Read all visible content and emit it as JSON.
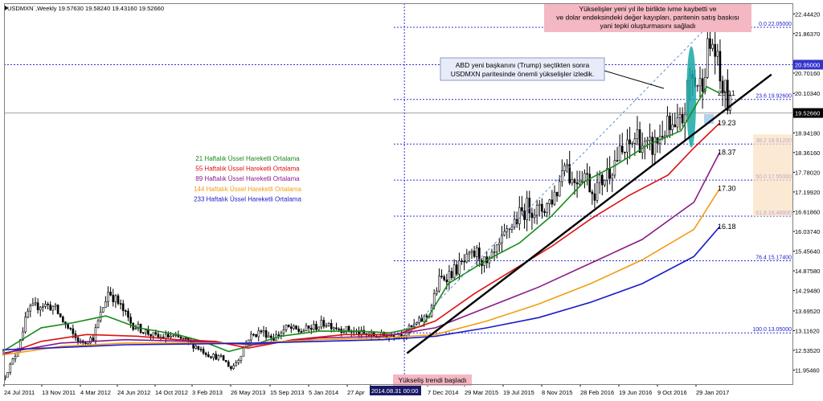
{
  "chart_data": {
    "type": "candlestick",
    "symbol_header": {
      "symbol": "USDMXN`,Weekly",
      "ohlc": [
        "19.57630",
        "19.58240",
        "19.43160",
        "19.52660"
      ]
    },
    "last_price": 19.5266,
    "ylim": [
      11.54,
      22.76
    ],
    "y_ticks": [
      {
        "v": 22.4442,
        "t": "22.44420"
      },
      {
        "v": 21.8637,
        "t": "21.86370"
      },
      {
        "v": 20.7016,
        "t": "20.70160"
      },
      {
        "v": 20.1034,
        "t": "20.10340"
      },
      {
        "v": 18.9418,
        "t": "18.94180"
      },
      {
        "v": 18.3616,
        "t": "18.36160"
      },
      {
        "v": 17.7802,
        "t": "17.78020"
      },
      {
        "v": 17.1992,
        "t": "17.19920"
      },
      {
        "v": 16.6186,
        "t": "16.61860"
      },
      {
        "v": 16.0374,
        "t": "16.03740"
      },
      {
        "v": 15.4564,
        "t": "15.45640"
      },
      {
        "v": 14.8758,
        "t": "14.87580"
      },
      {
        "v": 14.2948,
        "t": "14.29480"
      },
      {
        "v": 13.6952,
        "t": "13.69520"
      },
      {
        "v": 13.1162,
        "t": "13.11620"
      },
      {
        "v": 12.5352,
        "t": "12.53520"
      },
      {
        "v": 11.9546,
        "t": "11.95460"
      }
    ],
    "x_ticks": [
      "24 Jul 2011",
      "13 Nov 2011",
      "4 Mar 2012",
      "24 Jun 2012",
      "14 Oct 2012",
      "3 Feb 2013",
      "26 May 2013",
      "15 Sep 2013",
      "5 Jan 2014",
      "27 Apr",
      "2014.08.31 00:00",
      "7 Dec 2014",
      "29 Mar 2015",
      "19 Jul 2015",
      "8 Nov 2015",
      "28 Feb 2016",
      "19 Jun 2016",
      "9 Oct 2016",
      "29 Jan 2017"
    ],
    "x_cursor_label": "2014.08.31 00:00",
    "h_level_tag": {
      "v": 20.95,
      "t": "20.95000"
    },
    "fibonacci": [
      {
        "label": "0.0 22.05000",
        "v": 22.05
      },
      {
        "label": "23.6 19.92600",
        "v": 19.926
      },
      {
        "label": "38.2 18.61200",
        "v": 18.612
      },
      {
        "label": "50.0 17.55000",
        "v": 17.55
      },
      {
        "label": "61.8 16.48800",
        "v": 16.488
      },
      {
        "label": "76.4 15.17400",
        "v": 15.174
      },
      {
        "label": "100.0 13.05000",
        "v": 13.05
      }
    ],
    "series": [
      {
        "name": "21 Haftalık Üssel Hareketli Ortalama",
        "color": "#1a8a1a",
        "end_label": "20.11",
        "points": [
          [
            2011.55,
            12.5
          ],
          [
            2011.85,
            13.2
          ],
          [
            2012.1,
            13.35
          ],
          [
            2012.35,
            13.55
          ],
          [
            2012.6,
            13.2
          ],
          [
            2012.9,
            13.0
          ],
          [
            2013.1,
            12.8
          ],
          [
            2013.3,
            12.5
          ],
          [
            2013.45,
            12.65
          ],
          [
            2013.7,
            12.95
          ],
          [
            2014.0,
            13.1
          ],
          [
            2014.3,
            13.1
          ],
          [
            2014.55,
            13.05
          ],
          [
            2014.8,
            13.25
          ],
          [
            2015.0,
            14.5
          ],
          [
            2015.3,
            15.2
          ],
          [
            2015.55,
            15.7
          ],
          [
            2015.8,
            16.5
          ],
          [
            2016.05,
            17.5
          ],
          [
            2016.3,
            18.0
          ],
          [
            2016.55,
            18.6
          ],
          [
            2016.8,
            19.0
          ],
          [
            2017.0,
            20.3
          ],
          [
            2017.1,
            20.11
          ]
        ]
      },
      {
        "name": "55 Haftalık Üssel Hareketli Ortalama",
        "color": "#dd1111",
        "end_label": "19.23",
        "points": [
          [
            2011.55,
            12.4
          ],
          [
            2011.85,
            12.8
          ],
          [
            2012.2,
            13.0
          ],
          [
            2012.6,
            12.95
          ],
          [
            2012.9,
            12.85
          ],
          [
            2013.2,
            12.8
          ],
          [
            2013.45,
            12.6
          ],
          [
            2013.8,
            12.85
          ],
          [
            2014.2,
            13.0
          ],
          [
            2014.6,
            13.0
          ],
          [
            2014.9,
            13.4
          ],
          [
            2015.2,
            14.2
          ],
          [
            2015.5,
            14.9
          ],
          [
            2015.8,
            15.6
          ],
          [
            2016.1,
            16.4
          ],
          [
            2016.4,
            17.1
          ],
          [
            2016.7,
            17.7
          ],
          [
            2016.9,
            18.5
          ],
          [
            2017.1,
            19.23
          ]
        ]
      },
      {
        "name": "89 Haftalık Üssel Hareketli Ortalama",
        "color": "#8a1a8a",
        "end_label": "18.37",
        "points": [
          [
            2011.55,
            12.45
          ],
          [
            2012.0,
            12.75
          ],
          [
            2012.5,
            12.85
          ],
          [
            2013.0,
            12.8
          ],
          [
            2013.5,
            12.7
          ],
          [
            2014.0,
            12.9
          ],
          [
            2014.5,
            12.95
          ],
          [
            2014.9,
            13.2
          ],
          [
            2015.3,
            13.8
          ],
          [
            2015.7,
            14.4
          ],
          [
            2016.1,
            15.1
          ],
          [
            2016.5,
            15.8
          ],
          [
            2016.9,
            16.9
          ],
          [
            2017.1,
            18.37
          ]
        ]
      },
      {
        "name": "144 Haftalık Üssel Hareketli Ortalama",
        "color": "#f39c12",
        "end_label": "17.30",
        "points": [
          [
            2011.55,
            12.4
          ],
          [
            2012.0,
            12.65
          ],
          [
            2012.5,
            12.75
          ],
          [
            2013.0,
            12.75
          ],
          [
            2013.5,
            12.75
          ],
          [
            2014.0,
            12.85
          ],
          [
            2014.5,
            12.9
          ],
          [
            2014.9,
            13.0
          ],
          [
            2015.3,
            13.4
          ],
          [
            2015.7,
            13.9
          ],
          [
            2016.1,
            14.5
          ],
          [
            2016.5,
            15.2
          ],
          [
            2016.9,
            16.1
          ],
          [
            2017.1,
            17.3
          ]
        ]
      },
      {
        "name": "233 Haftalık Üssel Hareketli Ortalama",
        "color": "#1a1acc",
        "end_label": "16.18",
        "points": [
          [
            2011.55,
            12.55
          ],
          [
            2012.0,
            12.62
          ],
          [
            2012.5,
            12.7
          ],
          [
            2013.0,
            12.72
          ],
          [
            2013.5,
            12.75
          ],
          [
            2014.0,
            12.8
          ],
          [
            2014.5,
            12.85
          ],
          [
            2014.9,
            12.95
          ],
          [
            2015.3,
            13.2
          ],
          [
            2015.7,
            13.5
          ],
          [
            2016.1,
            13.95
          ],
          [
            2016.5,
            14.5
          ],
          [
            2016.9,
            15.3
          ],
          [
            2017.1,
            16.18
          ]
        ]
      }
    ],
    "trendline": {
      "x1": 2014.68,
      "y1": 12.45,
      "x2": 2017.5,
      "y2": 20.66
    },
    "channel_line": {
      "x1": 2014.68,
      "y1": 13.05,
      "x2": 2017.0,
      "y2": 22.05
    },
    "annotations": {
      "top_note": "Yükselişler yeni yıl ile birlikte ivme kaybetti ve ve dolar endeksindeki değer kayıpları, paritenin satış baskısı yani tepki oluşturmasını sağladı",
      "trump_note": "ABD yeni başkanını (Trump) seçtikten sonra USDMXN paritesinde önemli yükselişler izledik.",
      "trend_start": "Yükseliş trendi başladı"
    },
    "legend_placement": "left-middle",
    "grid": false
  }
}
